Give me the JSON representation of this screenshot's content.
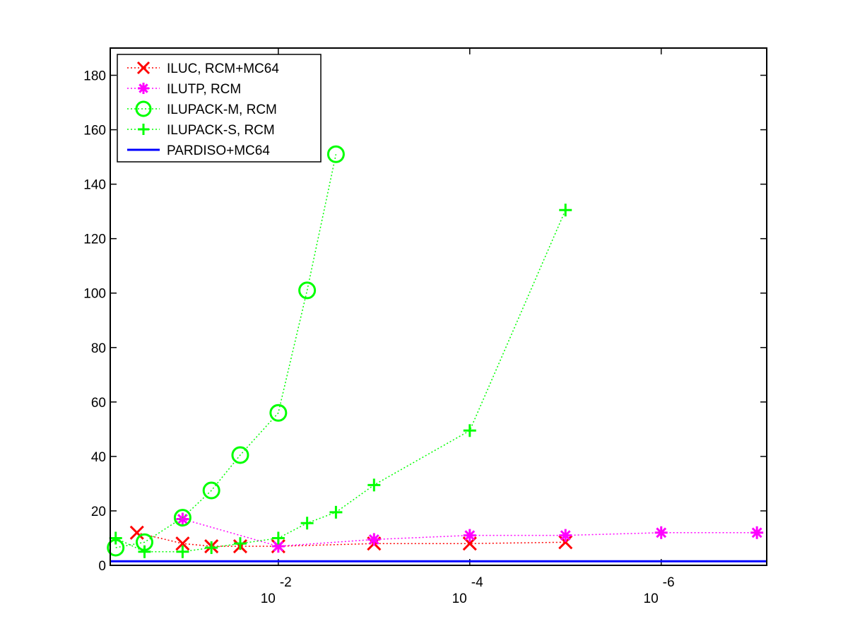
{
  "chart_data": {
    "type": "line",
    "xscale": "log",
    "x_reversed": true,
    "xlim": [
      0.57,
      7.9e-08
    ],
    "ylim": [
      0,
      190
    ],
    "ytick_values": [
      0,
      20,
      40,
      60,
      80,
      100,
      120,
      140,
      160,
      180
    ],
    "ytick_labels": [
      "0",
      "20",
      "40",
      "60",
      "80",
      "100",
      "120",
      "140",
      "160",
      "180"
    ],
    "xtick_values": [
      0.01,
      0.0001,
      1e-06
    ],
    "xtick_bases": [
      "10",
      "10",
      "10"
    ],
    "xtick_exponents": [
      "-2",
      "-4",
      "-6"
    ],
    "grid": false,
    "legend_position": "top-left",
    "series": [
      {
        "name": "ILUC, RCM+MC64",
        "color": "#ff0000",
        "marker": "x",
        "linestyle": "dotted",
        "x": [
          0.3,
          0.1,
          0.05,
          0.025,
          0.01,
          0.001,
          0.0001,
          1e-05
        ],
        "y": [
          12,
          8,
          7,
          7,
          7,
          8,
          8,
          8.5
        ]
      },
      {
        "name": "ILUTP, RCM",
        "color": "#ff00ff",
        "marker": "asterisk",
        "linestyle": "dotted",
        "x": [
          0.1,
          0.01,
          0.001,
          0.0001,
          1e-05,
          1e-06,
          1e-07
        ],
        "y": [
          17,
          7,
          9.5,
          11,
          11,
          12,
          12
        ]
      },
      {
        "name": "ILUPACK-M, RCM",
        "color": "#00ff00",
        "marker": "circle",
        "linestyle": "dotted",
        "x": [
          0.5,
          0.25,
          0.1,
          0.05,
          0.025,
          0.01,
          0.005,
          0.0025
        ],
        "y": [
          6.5,
          8.5,
          17.5,
          27.5,
          40.5,
          56,
          101,
          151
        ]
      },
      {
        "name": "ILUPACK-S, RCM",
        "color": "#00ff00",
        "marker": "plus",
        "linestyle": "dotted",
        "x": [
          0.5,
          0.25,
          0.1,
          0.05,
          0.025,
          0.01,
          0.005,
          0.0025,
          0.001,
          0.0001,
          1e-05
        ],
        "y": [
          10,
          5,
          5,
          6.5,
          8,
          10,
          15.5,
          19.5,
          29.5,
          49.5,
          130.5
        ]
      },
      {
        "name": "PARDISO+MC64",
        "color": "#0000ff",
        "marker": "none",
        "linestyle": "solid",
        "x": [
          0.57,
          7.9e-08
        ],
        "y": [
          1.5,
          1.5
        ]
      }
    ]
  }
}
